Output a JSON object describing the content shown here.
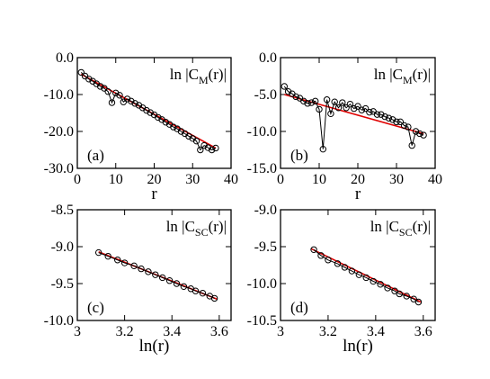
{
  "chart_data": [
    {
      "panel": "a",
      "type": "line",
      "tag": "(a)",
      "annotation": {
        "prefix": "ln |C",
        "sub": "M",
        "suffix": "(r)|"
      },
      "xlabel": "r",
      "xlim": [
        0,
        40
      ],
      "ylim": [
        -30,
        0
      ],
      "xticks": [
        0,
        10,
        20,
        30,
        40
      ],
      "yticks": [
        0,
        -10,
        -20,
        -30
      ],
      "xtick_labels": [
        "0",
        "10",
        "20",
        "30",
        "40"
      ],
      "ytick_labels": [
        "0.0",
        "-10.0",
        "-20.0",
        "-30.0"
      ],
      "series": [
        {
          "x": [
            1,
            2,
            3,
            4,
            5,
            6,
            7,
            8,
            9,
            10,
            11,
            12,
            13,
            14,
            15,
            16,
            17,
            18,
            19,
            20,
            21,
            22,
            23,
            24,
            25,
            26,
            27,
            28,
            29,
            30,
            31,
            32,
            33,
            34,
            35,
            36
          ],
          "y": [
            -4.0,
            -5.0,
            -5.8,
            -6.4,
            -7.1,
            -7.8,
            -8.3,
            -9.2,
            -12.2,
            -9.6,
            -10.2,
            -12.0,
            -11.2,
            -11.8,
            -12.4,
            -12.9,
            -13.6,
            -14.3,
            -14.9,
            -15.5,
            -16.2,
            -16.8,
            -17.5,
            -18.1,
            -18.8,
            -19.3,
            -20.0,
            -20.6,
            -21.3,
            -21.9,
            -22.6,
            -25.0,
            -23.8,
            -24.4,
            -25.0,
            -24.5
          ]
        }
      ],
      "fit": {
        "x": [
          1,
          36
        ],
        "y": [
          -4.5,
          -24.5
        ]
      }
    },
    {
      "panel": "b",
      "type": "line",
      "tag": "(b)",
      "annotation": {
        "prefix": "ln |C",
        "sub": "M",
        "suffix": "(r)|"
      },
      "xlabel": "r",
      "xlim": [
        0,
        40
      ],
      "ylim": [
        -15,
        0
      ],
      "xticks": [
        0,
        10,
        20,
        30,
        40
      ],
      "yticks": [
        0,
        -5,
        -10,
        -15
      ],
      "xtick_labels": [
        "0",
        "10",
        "20",
        "30",
        "40"
      ],
      "ytick_labels": [
        "0.0",
        "-5.0",
        "-10.0",
        "-15.0"
      ],
      "series": [
        {
          "x": [
            1,
            2,
            3,
            4,
            5,
            6,
            7,
            8,
            9,
            10,
            11,
            12,
            13,
            14,
            15,
            16,
            17,
            18,
            19,
            20,
            21,
            22,
            23,
            24,
            25,
            26,
            27,
            28,
            29,
            30,
            31,
            32,
            33,
            34,
            35,
            36,
            37
          ],
          "y": [
            -3.9,
            -4.6,
            -4.9,
            -5.3,
            -5.5,
            -5.9,
            -6.2,
            -6.1,
            -5.9,
            -7.0,
            -12.4,
            -5.7,
            -7.6,
            -6.0,
            -6.8,
            -6.1,
            -6.8,
            -6.3,
            -6.9,
            -6.6,
            -7.1,
            -6.9,
            -7.4,
            -7.3,
            -7.7,
            -7.7,
            -8.0,
            -8.2,
            -8.4,
            -8.7,
            -8.7,
            -9.2,
            -9.4,
            -11.9,
            -10.0,
            -10.3,
            -10.5
          ]
        }
      ],
      "fit": {
        "x": [
          1,
          37
        ],
        "y": [
          -5.0,
          -10.3
        ]
      }
    },
    {
      "panel": "c",
      "type": "scatter",
      "tag": "(c)",
      "annotation": {
        "prefix": "ln |C",
        "sub": "SC",
        "suffix": "(r)|"
      },
      "xlabel": "ln(r)",
      "xlim": [
        3.0,
        3.65
      ],
      "ylim": [
        -10.0,
        -8.5
      ],
      "xticks": [
        3.0,
        3.2,
        3.4,
        3.6
      ],
      "yticks": [
        -8.5,
        -9.0,
        -9.5,
        -10.0
      ],
      "xtick_labels": [
        "3",
        "3.2",
        "3.4",
        "3.6"
      ],
      "ytick_labels": [
        "-8.5",
        "-9.0",
        "-9.5",
        "-10.0"
      ],
      "series": [
        {
          "x": [
            3.09,
            3.13,
            3.17,
            3.2,
            3.24,
            3.27,
            3.3,
            3.33,
            3.36,
            3.39,
            3.42,
            3.45,
            3.48,
            3.5,
            3.53,
            3.56,
            3.58
          ],
          "y": [
            -9.08,
            -9.13,
            -9.18,
            -9.22,
            -9.26,
            -9.3,
            -9.34,
            -9.38,
            -9.42,
            -9.46,
            -9.5,
            -9.54,
            -9.57,
            -9.6,
            -9.63,
            -9.67,
            -9.7
          ]
        }
      ],
      "fit": {
        "x": [
          3.09,
          3.59
        ],
        "y": [
          -9.07,
          -9.71
        ]
      }
    },
    {
      "panel": "d",
      "type": "scatter",
      "tag": "(d)",
      "annotation": {
        "prefix": "ln |C",
        "sub": "SC",
        "suffix": "(r)|"
      },
      "xlabel": "ln(r)",
      "xlim": [
        3.0,
        3.65
      ],
      "ylim": [
        -10.5,
        -9.0
      ],
      "xticks": [
        3.0,
        3.2,
        3.4,
        3.6
      ],
      "yticks": [
        -9.0,
        -9.5,
        -10.0,
        -10.5
      ],
      "xtick_labels": [
        "3",
        "3.2",
        "3.4",
        "3.6"
      ],
      "ytick_labels": [
        "-9.0",
        "-9.5",
        "-10.0",
        "-10.5"
      ],
      "series": [
        {
          "x": [
            3.14,
            3.17,
            3.2,
            3.24,
            3.27,
            3.3,
            3.33,
            3.36,
            3.39,
            3.42,
            3.45,
            3.48,
            3.5,
            3.53,
            3.56,
            3.58
          ],
          "y": [
            -9.54,
            -9.62,
            -9.68,
            -9.73,
            -9.78,
            -9.83,
            -9.88,
            -9.92,
            -9.97,
            -10.01,
            -10.06,
            -10.1,
            -10.14,
            -10.17,
            -10.21,
            -10.25
          ]
        }
      ],
      "fit": {
        "x": [
          3.13,
          3.59
        ],
        "y": [
          -9.53,
          -10.25
        ]
      }
    }
  ]
}
